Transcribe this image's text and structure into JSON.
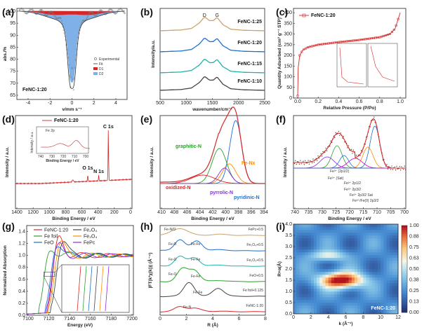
{
  "colors": {
    "red": "#d62728",
    "blue": "#1f6fd1",
    "green": "#2ca02c",
    "orange": "#ff8c00",
    "purple": "#8a2be2",
    "gray": "#444444",
    "lightblue": "#7fb0e8",
    "tan": "#c9a36a",
    "teal": "#20b2aa",
    "magenta": "#d000d0"
  },
  "chart_data": [
    {
      "id": "a",
      "panel": "(a)",
      "type": "line",
      "xlabel": "v/mm s⁻¹",
      "ylabel": "abs./%",
      "xticks": [
        "-4",
        "-2",
        "0",
        "2",
        "4"
      ],
      "yticks": [
        "100",
        "95",
        "90",
        "85",
        "80",
        "75",
        "70",
        "65"
      ],
      "legend": [
        "Experimental",
        "Fit",
        "D1",
        "D2"
      ],
      "label": "FeNC-1:20",
      "xlim": [
        -5,
        5
      ],
      "ylim": [
        64,
        101
      ],
      "x": [
        -4.5,
        -3,
        -1.5,
        -1,
        -0.6,
        -0.3,
        -0.15,
        0,
        0.15,
        0.3,
        0.6,
        1,
        1.5,
        3,
        4.5
      ],
      "fit": [
        100,
        99.6,
        98.5,
        96,
        90,
        80,
        68,
        78,
        68,
        80,
        90,
        96,
        98.5,
        99.6,
        100
      ]
    },
    {
      "id": "b",
      "panel": "(b)",
      "type": "line",
      "xlabel": "wavenumber/cm⁻¹",
      "ylabel": "Intensity/a.u.",
      "xticks": [
        "500",
        "1000",
        "1500",
        "2000",
        "2500"
      ],
      "peaks": [
        "D",
        "G"
      ],
      "xlim": [
        500,
        2500
      ],
      "x": [
        500,
        900,
        1100,
        1250,
        1350,
        1450,
        1520,
        1590,
        1700,
        1850,
        2100,
        2500
      ],
      "shape": [
        0.05,
        0.1,
        0.2,
        0.55,
        0.95,
        0.7,
        0.72,
        0.92,
        0.45,
        0.15,
        0.08,
        0.05
      ],
      "series": [
        {
          "name": "FeNC-1:25"
        },
        {
          "name": "FeNC-1:20"
        },
        {
          "name": "FeNC-1:15"
        },
        {
          "name": "FeNC-1:10"
        }
      ]
    },
    {
      "id": "c",
      "panel": "(c)",
      "type": "line",
      "xlabel": "Relative Pressure (P/Po)",
      "ylabel": "Quantity Adsorbed (cm³ g⁻¹ STP)",
      "xticks": [
        "0.0",
        "0.2",
        "0.4",
        "0.6",
        "0.8",
        "1.0"
      ],
      "yticks": [
        "0",
        "50",
        "100",
        "150",
        "200",
        "250",
        "300",
        "350",
        "400"
      ],
      "legend": [
        "FeNC-1:20"
      ],
      "xlim": [
        0,
        1
      ],
      "ylim": [
        0,
        420
      ],
      "x": [
        0,
        0.005,
        0.02,
        0.05,
        0.1,
        0.2,
        0.4,
        0.6,
        0.8,
        0.9,
        0.95,
        0.98,
        1.0
      ],
      "y": [
        10,
        140,
        200,
        225,
        238,
        250,
        262,
        272,
        285,
        300,
        325,
        370,
        400
      ]
    },
    {
      "id": "d",
      "panel": "(d)",
      "type": "line",
      "xlabel": "Binding Energy / eV",
      "ylabel": "Intensity / a.u.",
      "xticks": [
        "1400",
        "1200",
        "1000",
        "800",
        "600",
        "400",
        "200",
        "0"
      ],
      "legend": [
        "FeNC-1:20"
      ],
      "peaks": [
        "C 1s",
        "N 1s",
        "O 1s"
      ],
      "inset_xticks": [
        "740",
        "730",
        "720",
        "710",
        "700"
      ],
      "inset_legend": [
        "Fe 2p"
      ],
      "inset_xlabel": "Binding Energy / eV",
      "inset_ylabel": "Intensity / a.u.",
      "xlim": [
        1400,
        0
      ]
    },
    {
      "id": "e",
      "panel": "(e)",
      "type": "line",
      "xlabel": "Binding Energy / eV",
      "ylabel": "Intensity / a.u.",
      "xticks": [
        "410",
        "408",
        "406",
        "404",
        "402",
        "400",
        "398",
        "396",
        "394"
      ],
      "labels": [
        "graphitic-N",
        "Fe-Nx",
        "oxidized-N",
        "pyrrolic-N",
        "pyridinic-N"
      ],
      "xlim": [
        410,
        394
      ]
    },
    {
      "id": "f",
      "panel": "(f)",
      "type": "line",
      "xlabel": "Binding Energy / eV",
      "ylabel": "Intensity / a.u.",
      "xticks": [
        "740",
        "735",
        "730",
        "725",
        "720",
        "715",
        "710",
        "705",
        "700"
      ],
      "labels": [
        "Fe³⁺ (2p1/2)",
        "Fe³⁺ (Sat)",
        "Fe²⁺ 2p1/2",
        "Fe³⁺ 2p3/2",
        "Fe²⁺ 2p3/2 Sat",
        "Fe²⁺/Fe(0) 2p3/2"
      ],
      "xlim": [
        740,
        700
      ]
    },
    {
      "id": "g",
      "panel": "(g)",
      "type": "line",
      "xlabel": "Energy (eV)",
      "ylabel": "Normalized Absorption",
      "xticks": [
        "7100",
        "7120",
        "7140",
        "7160",
        "7180",
        "7200"
      ],
      "yticks": [
        "0.0",
        "0.2",
        "0.4",
        "0.6",
        "0.8",
        "1.0",
        "1.2",
        "1.4"
      ],
      "legend": [
        "FeNC-1:20",
        "Fe foil",
        "FeO",
        "Fe₂O₃",
        "Fe₃O₄",
        "FePc"
      ],
      "xlim": [
        7100,
        7200
      ],
      "ylim": [
        0,
        1.5
      ]
    },
    {
      "id": "h",
      "panel": "(h)",
      "type": "line",
      "xlabel": "R (Å)",
      "ylabel": "|FT(k³χ(k))| (Å⁻⁴)",
      "xticks": [
        "0",
        "2",
        "4",
        "6",
        "8"
      ],
      "series": [
        {
          "name": "FePc+0.5"
        },
        {
          "name": "Fe₃O₄+0.5"
        },
        {
          "name": "Fe₂O₃+0.5"
        },
        {
          "name": "FeO+0.5"
        },
        {
          "name": "Fe foil+0.125"
        },
        {
          "name": "FeNC-1:20"
        }
      ],
      "labels": [
        "Fe-N",
        "Fe-O",
        "Fe-Fe"
      ],
      "xlim": [
        0,
        8
      ]
    },
    {
      "id": "i",
      "panel": "(i)",
      "type": "heatmap",
      "xlabel": "k (Å⁻¹)",
      "ylabel": "R+α(Å)",
      "xticks": [
        "0",
        "2",
        "4",
        "6",
        "8",
        "10",
        "12"
      ],
      "yticks": [
        "0.0",
        "0.5",
        "1.0",
        "1.5",
        "2.0",
        "2.5",
        "3.0",
        "3.5",
        "4.0"
      ],
      "colorbar": [
        "1.00",
        "0.88",
        "0.75",
        "0.63",
        "0.50",
        "0.38",
        "0.25",
        "0.13",
        "0.00"
      ],
      "label": "FeNC-1:20",
      "xlim": [
        0,
        12
      ],
      "ylim": [
        0,
        4
      ],
      "peak": {
        "k": 5.5,
        "R": 1.5
      }
    }
  ]
}
